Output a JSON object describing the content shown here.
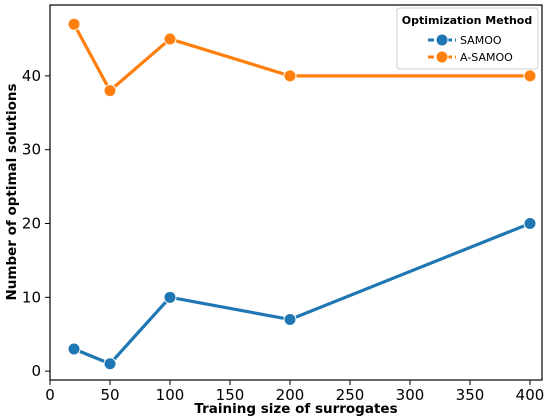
{
  "chart_data": {
    "type": "line",
    "xlabel": "Training size of surrogates",
    "ylabel": "Number of optimal solutions",
    "xlim": [
      0,
      410
    ],
    "ylim": [
      -1.2,
      49.6
    ],
    "xticks": [
      0,
      50,
      100,
      150,
      200,
      250,
      300,
      350,
      400
    ],
    "yticks": [
      0,
      10,
      20,
      30,
      40
    ],
    "grid": false,
    "legend": {
      "title": "Optimization Method",
      "placement": "top-right"
    },
    "x": [
      20,
      50,
      100,
      200,
      400
    ],
    "series": [
      {
        "name": "SAMOO",
        "color": "#1f77b4",
        "values": [
          3,
          1,
          10,
          7,
          20
        ]
      },
      {
        "name": "A-SAMOO",
        "color": "#ff7f0e",
        "values": [
          47,
          38,
          45,
          40,
          40
        ]
      }
    ]
  }
}
